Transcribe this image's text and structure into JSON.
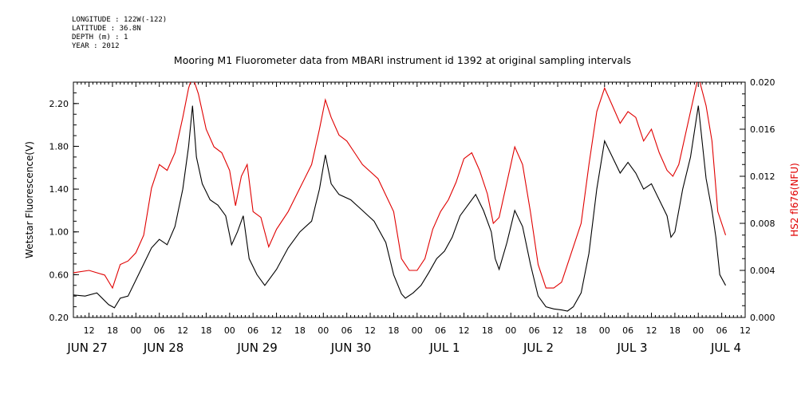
{
  "header": {
    "lines": [
      "LONGITUDE : 122W(-122)",
      "LATITUDE : 36.8N",
      "DEPTH (m) : 1",
      "YEAR : 2012"
    ]
  },
  "chart_data": {
    "type": "line",
    "title": "Mooring M1 Fluorometer data from MBARI instrument id 1392 at original sampling intervals",
    "ylabel": "Wetstar Fluorescence(V)",
    "y2label": "HS2 fl676(NFU)",
    "x_range": [
      "2012-06-27T08:00",
      "2012-07-04T12:00"
    ],
    "ylim": [
      0.2,
      2.4
    ],
    "y2lim": [
      0.0,
      0.02
    ],
    "yticks": [
      "0.20",
      "0.60",
      "1.00",
      "1.40",
      "1.80",
      "2.20"
    ],
    "y2ticks": [
      "0.000",
      "0.004",
      "0.008",
      "0.012",
      "0.016",
      "0.020"
    ],
    "xtick_labels": [
      "12",
      "18",
      "00",
      "06",
      "12",
      "18",
      "00",
      "06",
      "12",
      "18",
      "00",
      "06",
      "12",
      "18",
      "00",
      "06",
      "12",
      "18",
      "00",
      "06",
      "12",
      "18",
      "00",
      "06",
      "12",
      "18",
      "00",
      "06",
      "12",
      "18",
      "00",
      "06",
      "12",
      "18",
      "00",
      "06",
      "12",
      "18",
      "00",
      "06",
      "12",
      "18",
      "00",
      "06"
    ],
    "date_labels": [
      "JUN 27",
      "JUN 28",
      "JUN 29",
      "JUN 30",
      "JUL  1",
      "JUL  2",
      "JUL  3",
      "JUL  4"
    ],
    "series": [
      {
        "name": "Wetstar Fluorescence(V)",
        "color": "#000000",
        "axis": "left",
        "points": [
          [
            "06-27T08:00",
            0.41
          ],
          [
            "06-27T11:00",
            0.4
          ],
          [
            "06-27T14:00",
            0.43
          ],
          [
            "06-27T17:00",
            0.32
          ],
          [
            "06-27T18:30",
            0.29
          ],
          [
            "06-27T20:00",
            0.38
          ],
          [
            "06-27T22:00",
            0.4
          ],
          [
            "06-28T00:00",
            0.55
          ],
          [
            "06-28T02:00",
            0.7
          ],
          [
            "06-28T04:00",
            0.85
          ],
          [
            "06-28T06:00",
            0.93
          ],
          [
            "06-28T08:00",
            0.88
          ],
          [
            "06-28T10:00",
            1.05
          ],
          [
            "06-28T12:00",
            1.4
          ],
          [
            "06-28T13:30",
            1.8
          ],
          [
            "06-28T14:30",
            2.18
          ],
          [
            "06-28T15:30",
            1.7
          ],
          [
            "06-28T17:00",
            1.45
          ],
          [
            "06-28T19:00",
            1.3
          ],
          [
            "06-28T21:00",
            1.25
          ],
          [
            "06-28T23:00",
            1.15
          ],
          [
            "06-29T00:30",
            0.88
          ],
          [
            "06-29T02:00",
            1.0
          ],
          [
            "06-29T03:30",
            1.15
          ],
          [
            "06-29T05:00",
            0.75
          ],
          [
            "06-29T07:00",
            0.6
          ],
          [
            "06-29T09:00",
            0.5
          ],
          [
            "06-29T12:00",
            0.65
          ],
          [
            "06-29T15:00",
            0.85
          ],
          [
            "06-29T18:00",
            1.0
          ],
          [
            "06-29T21:00",
            1.1
          ],
          [
            "06-29T23:00",
            1.4
          ],
          [
            "06-30T00:30",
            1.72
          ],
          [
            "06-30T02:00",
            1.45
          ],
          [
            "06-30T04:00",
            1.35
          ],
          [
            "06-30T07:00",
            1.3
          ],
          [
            "06-30T10:00",
            1.2
          ],
          [
            "06-30T13:00",
            1.1
          ],
          [
            "06-30T16:00",
            0.9
          ],
          [
            "06-30T18:00",
            0.6
          ],
          [
            "06-30T20:00",
            0.42
          ],
          [
            "06-30T21:00",
            0.38
          ],
          [
            "06-30T23:00",
            0.43
          ],
          [
            "07-01T01:00",
            0.5
          ],
          [
            "07-01T03:00",
            0.62
          ],
          [
            "07-01T05:00",
            0.75
          ],
          [
            "07-01T07:00",
            0.82
          ],
          [
            "07-01T09:00",
            0.95
          ],
          [
            "07-01T11:00",
            1.15
          ],
          [
            "07-01T13:00",
            1.25
          ],
          [
            "07-01T15:00",
            1.35
          ],
          [
            "07-01T17:00",
            1.2
          ],
          [
            "07-01T19:00",
            1.0
          ],
          [
            "07-01T20:00",
            0.75
          ],
          [
            "07-01T21:00",
            0.65
          ],
          [
            "07-01T23:00",
            0.9
          ],
          [
            "07-02T01:00",
            1.2
          ],
          [
            "07-02T03:00",
            1.05
          ],
          [
            "07-02T05:00",
            0.7
          ],
          [
            "07-02T07:00",
            0.4
          ],
          [
            "07-02T09:00",
            0.3
          ],
          [
            "07-02T11:00",
            0.28
          ],
          [
            "07-02T13:00",
            0.27
          ],
          [
            "07-02T14:30",
            0.26
          ],
          [
            "07-02T16:00",
            0.3
          ],
          [
            "07-02T18:00",
            0.43
          ],
          [
            "07-02T20:00",
            0.8
          ],
          [
            "07-02T22:00",
            1.4
          ],
          [
            "07-03T00:00",
            1.85
          ],
          [
            "07-03T02:00",
            1.7
          ],
          [
            "07-03T04:00",
            1.55
          ],
          [
            "07-03T06:00",
            1.65
          ],
          [
            "07-03T08:00",
            1.55
          ],
          [
            "07-03T10:00",
            1.4
          ],
          [
            "07-03T12:00",
            1.45
          ],
          [
            "07-03T14:00",
            1.3
          ],
          [
            "07-03T16:00",
            1.15
          ],
          [
            "07-03T17:00",
            0.95
          ],
          [
            "07-03T18:00",
            1.0
          ],
          [
            "07-03T20:00",
            1.4
          ],
          [
            "07-03T22:00",
            1.7
          ],
          [
            "07-04T00:00",
            2.18
          ],
          [
            "07-04T02:00",
            1.5
          ],
          [
            "07-04T03:30",
            1.2
          ],
          [
            "07-04T04:30",
            0.95
          ],
          [
            "07-04T05:30",
            0.6
          ],
          [
            "07-04T07:00",
            0.5
          ]
        ]
      },
      {
        "name": "HS2 fl676(NFU)",
        "color": "#e00000",
        "axis": "right",
        "points": [
          [
            "06-27T08:00",
            0.0038
          ],
          [
            "06-27T12:00",
            0.004
          ],
          [
            "06-27T16:00",
            0.0036
          ],
          [
            "06-27T18:00",
            0.0025
          ],
          [
            "06-27T20:00",
            0.0045
          ],
          [
            "06-27T22:00",
            0.0048
          ],
          [
            "06-28T00:00",
            0.0055
          ],
          [
            "06-28T02:00",
            0.007
          ],
          [
            "06-28T04:00",
            0.011
          ],
          [
            "06-28T06:00",
            0.013
          ],
          [
            "06-28T08:00",
            0.0125
          ],
          [
            "06-28T10:00",
            0.014
          ],
          [
            "06-28T12:00",
            0.017
          ],
          [
            "06-28T13:30",
            0.0195
          ],
          [
            "06-28T14:30",
            0.0205
          ],
          [
            "06-28T16:00",
            0.019
          ],
          [
            "06-28T18:00",
            0.016
          ],
          [
            "06-28T20:00",
            0.0145
          ],
          [
            "06-28T22:00",
            0.014
          ],
          [
            "06-29T00:00",
            0.0125
          ],
          [
            "06-29T01:30",
            0.0095
          ],
          [
            "06-29T03:00",
            0.012
          ],
          [
            "06-29T04:30",
            0.013
          ],
          [
            "06-29T06:00",
            0.009
          ],
          [
            "06-29T08:00",
            0.0085
          ],
          [
            "06-29T10:00",
            0.006
          ],
          [
            "06-29T12:00",
            0.0075
          ],
          [
            "06-29T15:00",
            0.009
          ],
          [
            "06-29T18:00",
            0.011
          ],
          [
            "06-29T21:00",
            0.013
          ],
          [
            "06-29T23:00",
            0.016
          ],
          [
            "06-30T00:30",
            0.0185
          ],
          [
            "06-30T02:00",
            0.017
          ],
          [
            "06-30T04:00",
            0.0155
          ],
          [
            "06-30T06:00",
            0.015
          ],
          [
            "06-30T08:00",
            0.014
          ],
          [
            "06-30T10:00",
            0.013
          ],
          [
            "06-30T14:00",
            0.0118
          ],
          [
            "06-30T18:00",
            0.009
          ],
          [
            "06-30T20:00",
            0.005
          ],
          [
            "06-30T22:00",
            0.004
          ],
          [
            "07-01T00:00",
            0.004
          ],
          [
            "07-01T02:00",
            0.005
          ],
          [
            "07-01T04:00",
            0.0075
          ],
          [
            "07-01T06:00",
            0.009
          ],
          [
            "07-01T08:00",
            0.01
          ],
          [
            "07-01T10:00",
            0.0115
          ],
          [
            "07-01T12:00",
            0.0135
          ],
          [
            "07-01T14:00",
            0.014
          ],
          [
            "07-01T16:00",
            0.0125
          ],
          [
            "07-01T18:00",
            0.0105
          ],
          [
            "07-01T19:30",
            0.008
          ],
          [
            "07-01T21:00",
            0.0085
          ],
          [
            "07-01T23:00",
            0.0115
          ],
          [
            "07-02T01:00",
            0.0145
          ],
          [
            "07-02T03:00",
            0.013
          ],
          [
            "07-02T05:00",
            0.009
          ],
          [
            "07-02T07:00",
            0.0045
          ],
          [
            "07-02T09:00",
            0.0025
          ],
          [
            "07-02T11:00",
            0.0025
          ],
          [
            "07-02T13:00",
            0.003
          ],
          [
            "07-02T15:00",
            0.005
          ],
          [
            "07-02T18:00",
            0.008
          ],
          [
            "07-02T20:00",
            0.013
          ],
          [
            "07-02T22:00",
            0.0175
          ],
          [
            "07-03T00:00",
            0.0195
          ],
          [
            "07-03T02:00",
            0.018
          ],
          [
            "07-03T04:00",
            0.0165
          ],
          [
            "07-03T06:00",
            0.0175
          ],
          [
            "07-03T08:00",
            0.017
          ],
          [
            "07-03T10:00",
            0.015
          ],
          [
            "07-03T12:00",
            0.016
          ],
          [
            "07-03T14:00",
            0.014
          ],
          [
            "07-03T16:00",
            0.0125
          ],
          [
            "07-03T17:30",
            0.012
          ],
          [
            "07-03T19:00",
            0.013
          ],
          [
            "07-03T21:00",
            0.016
          ],
          [
            "07-03T23:00",
            0.019
          ],
          [
            "07-04T00:00",
            0.0205
          ],
          [
            "07-04T02:00",
            0.018
          ],
          [
            "07-04T03:30",
            0.015
          ],
          [
            "07-04T05:00",
            0.009
          ],
          [
            "07-04T07:00",
            0.007
          ]
        ]
      }
    ]
  }
}
